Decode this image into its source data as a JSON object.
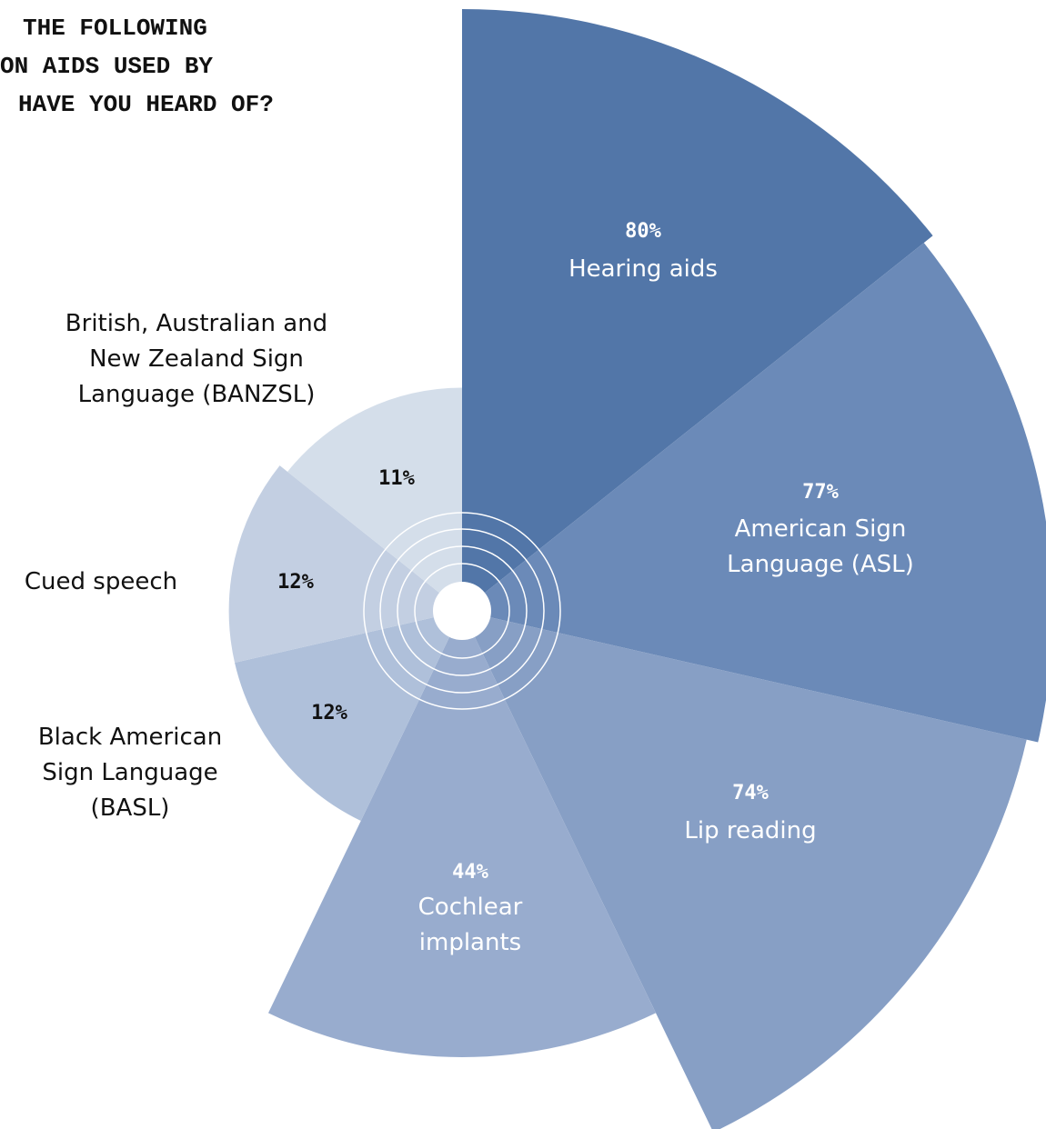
{
  "chart_data": {
    "type": "polar_area",
    "title_lines": [
      "THE FOLLOWING",
      "ON AIDS USED BY",
      "HAVE YOU HEARD OF?"
    ],
    "categories": [
      "Hearing aids",
      "American Sign Language (ASL)",
      "Lip reading",
      "Cochlear implants",
      "Black American Sign Language (BASL)",
      "Cued speech",
      "British, Australian and New Zealand Sign Language (BANZSL)"
    ],
    "values": [
      80,
      77,
      74,
      44,
      12,
      12,
      11
    ],
    "value_labels": [
      "80%",
      "77%",
      "74%",
      "44%",
      "12%",
      "12%",
      "11%"
    ],
    "colors": [
      "#5276a8",
      "#6b8ab8",
      "#879fc5",
      "#98acce",
      "#afc0da",
      "#c3cfe2",
      "#d4deea"
    ]
  }
}
